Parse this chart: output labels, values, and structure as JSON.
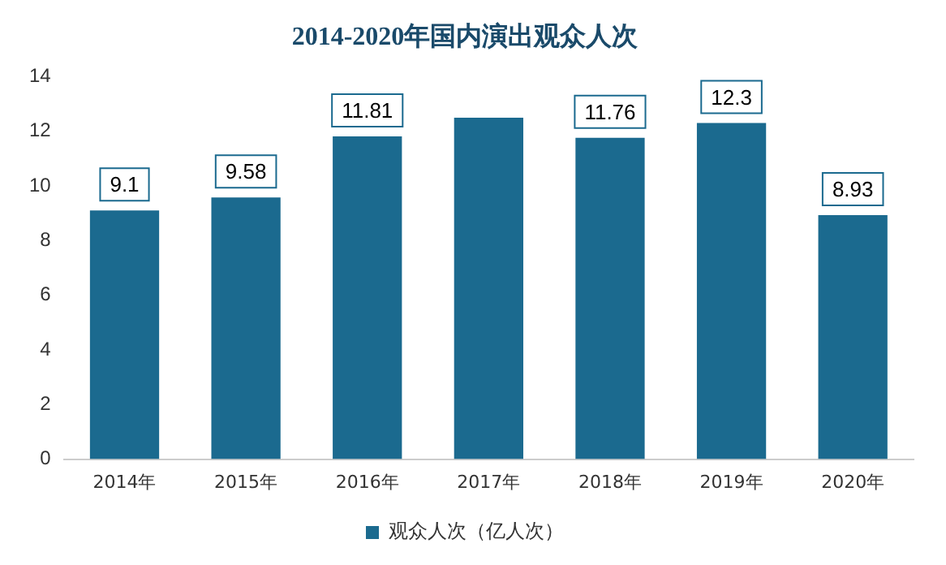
{
  "chart_data": {
    "type": "bar",
    "title": "2014-2020年国内演出观众人次",
    "categories": [
      "2014年",
      "2015年",
      "2016年",
      "2017年",
      "2018年",
      "2019年",
      "2020年"
    ],
    "series": [
      {
        "name": "观众人次（亿人次）",
        "color": "#1b6a8f",
        "values": [
          9.1,
          9.58,
          11.81,
          12.5,
          11.76,
          12.3,
          8.93
        ],
        "value_labels": [
          "9.1",
          "9.58",
          "11.81",
          null,
          "11.76",
          "12.3",
          "8.93"
        ]
      }
    ],
    "ylim": [
      0,
      14
    ],
    "yticks": [
      0,
      2,
      4,
      6,
      8,
      10,
      12,
      14
    ],
    "grid": false,
    "legend": "bottom"
  }
}
